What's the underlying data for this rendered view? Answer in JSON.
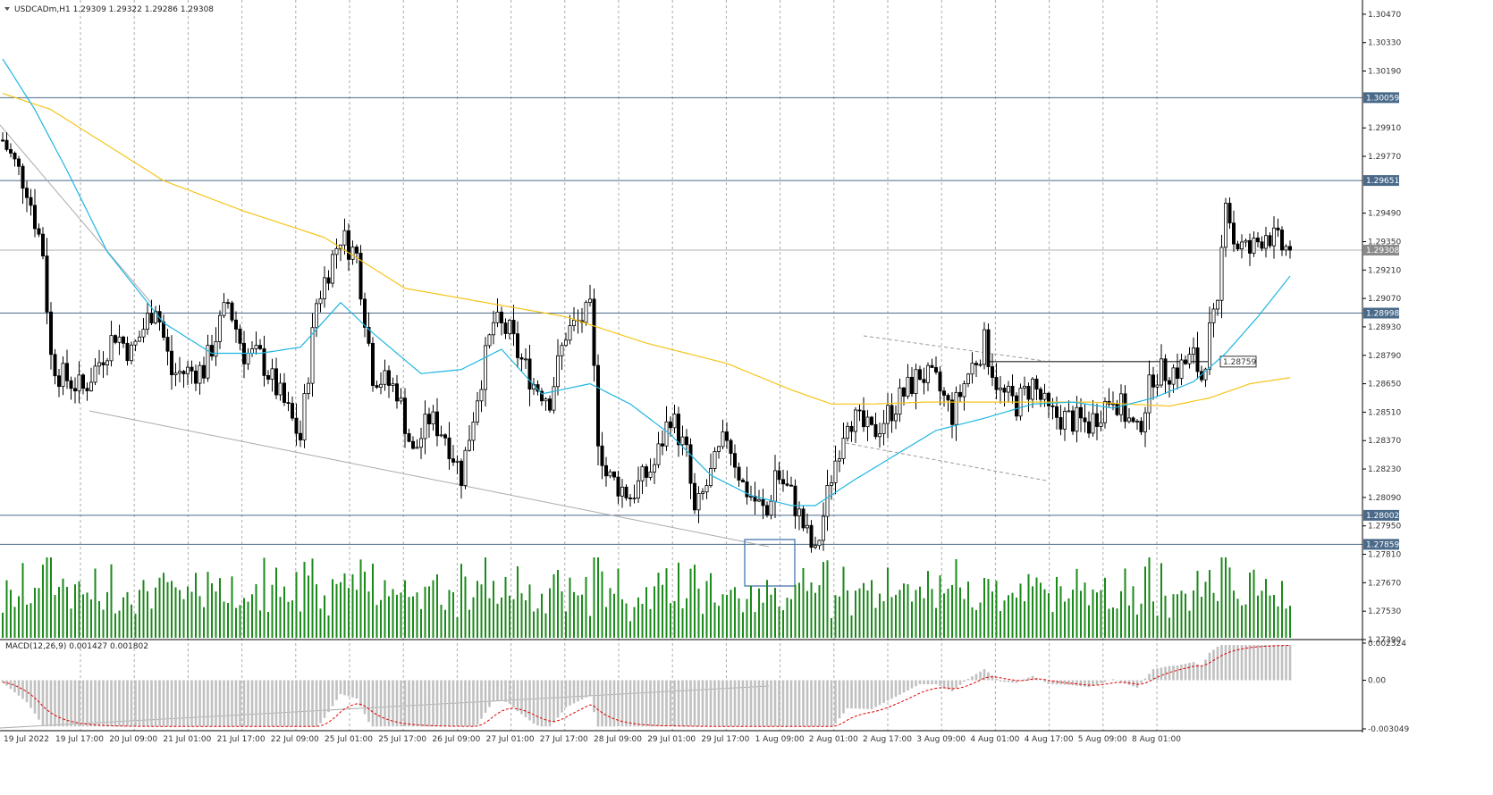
{
  "header": {
    "symbol_text": "USDCADm,H1  1.29309 1.29322 1.29286 1.29308",
    "macd_text": "MACD(12,26,9) 0.001427 0.001802"
  },
  "colors": {
    "candle": "#000000",
    "ma_fast": "#1fb6e0",
    "ma_slow": "#f5c518",
    "volume": "#1a8a1a",
    "macd_hist": "#c0c0c0",
    "macd_signal": "#e00000",
    "hline": "#4a6a8a",
    "hline_label_bg": "#4a6a8a",
    "current_label_bg": "#8a8a8a",
    "grid": "#888888",
    "trendline": "#aaaaaa",
    "box": "#3a6aa8"
  },
  "price_axis": {
    "ticks": [
      "1.30470",
      "1.30330",
      "1.30190",
      "1.29910",
      "1.29770",
      "1.29490",
      "1.29350",
      "1.29210",
      "1.29070",
      "1.28930",
      "1.28790",
      "1.28650",
      "1.28510",
      "1.28370",
      "1.28230",
      "1.28090",
      "1.27950",
      "1.27810",
      "1.27670",
      "1.27530",
      "1.27390"
    ]
  },
  "macd_axis": {
    "ticks": [
      "0.002324",
      "0.00",
      "-0.003049"
    ]
  },
  "time_axis": {
    "labels": [
      "19 Jul 2022",
      "19 Jul 17:00",
      "20 Jul 09:00",
      "21 Jul 01:00",
      "21 Jul 17:00",
      "22 Jul 09:00",
      "25 Jul 01:00",
      "25 Jul 17:00",
      "26 Jul 09:00",
      "27 Jul 01:00",
      "27 Jul 17:00",
      "28 Jul 09:00",
      "29 Jul 01:00",
      "29 Jul 17:00",
      "1 Aug 09:00",
      "2 Aug 01:00",
      "2 Aug 17:00",
      "3 Aug 09:00",
      "4 Aug 01:00",
      "4 Aug 17:00",
      "5 Aug 09:00",
      "8 Aug 01:00"
    ]
  },
  "price_lines": [
    {
      "label": "1.30059",
      "value": 1.30059
    },
    {
      "label": "1.29651",
      "value": 1.29651
    },
    {
      "label": "1.28998",
      "value": 1.28998
    },
    {
      "label": "1.28002",
      "value": 1.28002
    },
    {
      "label": "1.27859",
      "value": 1.27859
    }
  ],
  "current_price": {
    "label": "1.29308",
    "value": 1.29308
  },
  "breakout_line": {
    "label": "1.28759",
    "value": 1.28759
  },
  "chart_data": {
    "type": "candlestick",
    "symbol": "USDCADm",
    "timeframe": "H1",
    "ohlc_last": {
      "open": 1.29309,
      "high": 1.29322,
      "low": 1.29286,
      "close": 1.29308
    },
    "y_range": [
      1.2739,
      1.3054
    ],
    "close_path": [
      [
        0,
        1.2985
      ],
      [
        6,
        1.2962
      ],
      [
        10,
        1.293
      ],
      [
        12,
        1.2878
      ],
      [
        14,
        1.287
      ],
      [
        20,
        1.2862
      ],
      [
        28,
        1.289
      ],
      [
        32,
        1.288
      ],
      [
        38,
        1.2905
      ],
      [
        42,
        1.287
      ],
      [
        50,
        1.2872
      ],
      [
        56,
        1.2905
      ],
      [
        60,
        1.288
      ],
      [
        64,
        1.2878
      ],
      [
        70,
        1.2855
      ],
      [
        74,
        1.2838
      ],
      [
        78,
        1.2905
      ],
      [
        84,
        1.2938
      ],
      [
        88,
        1.2928
      ],
      [
        92,
        1.287
      ],
      [
        98,
        1.2862
      ],
      [
        102,
        1.283
      ],
      [
        106,
        1.2848
      ],
      [
        110,
        1.284
      ],
      [
        114,
        1.282
      ],
      [
        118,
        1.286
      ],
      [
        122,
        1.2895
      ],
      [
        126,
        1.289
      ],
      [
        128,
        1.288
      ],
      [
        132,
        1.2865
      ],
      [
        136,
        1.2858
      ],
      [
        140,
        1.289
      ],
      [
        146,
        1.29
      ],
      [
        148,
        1.284
      ],
      [
        150,
        1.282
      ],
      [
        156,
        1.281
      ],
      [
        162,
        1.2825
      ],
      [
        166,
        1.285
      ],
      [
        170,
        1.283
      ],
      [
        172,
        1.28
      ],
      [
        176,
        1.282
      ],
      [
        180,
        1.284
      ],
      [
        184,
        1.2815
      ],
      [
        190,
        1.28
      ],
      [
        192,
        1.2822
      ],
      [
        196,
        1.281
      ],
      [
        200,
        1.279
      ],
      [
        202,
        1.278
      ],
      [
        206,
        1.282
      ],
      [
        210,
        1.285
      ],
      [
        216,
        1.284
      ],
      [
        222,
        1.2855
      ],
      [
        228,
        1.287
      ],
      [
        232,
        1.2865
      ],
      [
        236,
        1.285
      ],
      [
        240,
        1.287
      ],
      [
        244,
        1.2885
      ],
      [
        248,
        1.286
      ],
      [
        252,
        1.2855
      ],
      [
        256,
        1.2865
      ],
      [
        260,
        1.285
      ],
      [
        264,
        1.2848
      ],
      [
        270,
        1.2845
      ],
      [
        276,
        1.286
      ],
      [
        282,
        1.284
      ],
      [
        286,
        1.287
      ],
      [
        292,
        1.2872
      ],
      [
        296,
        1.2878
      ],
      [
        298,
        1.2868
      ],
      [
        300,
        1.289
      ],
      [
        302,
        1.29
      ],
      [
        304,
        1.296
      ],
      [
        306,
        1.2935
      ],
      [
        310,
        1.293
      ],
      [
        314,
        1.294
      ],
      [
        318,
        1.2932
      ],
      [
        320,
        1.2931
      ]
    ],
    "ma_fast_path": [
      [
        0,
        1.3025
      ],
      [
        8,
        1.3
      ],
      [
        16,
        1.297
      ],
      [
        26,
        1.293
      ],
      [
        40,
        1.2895
      ],
      [
        52,
        1.288
      ],
      [
        64,
        1.288
      ],
      [
        74,
        1.2883
      ],
      [
        84,
        1.2905
      ],
      [
        92,
        1.289
      ],
      [
        104,
        1.287
      ],
      [
        114,
        1.2872
      ],
      [
        124,
        1.2882
      ],
      [
        134,
        1.286
      ],
      [
        146,
        1.2865
      ],
      [
        156,
        1.2855
      ],
      [
        166,
        1.284
      ],
      [
        176,
        1.282
      ],
      [
        186,
        1.281
      ],
      [
        196,
        1.2805
      ],
      [
        202,
        1.2805
      ],
      [
        212,
        1.2818
      ],
      [
        222,
        1.283
      ],
      [
        232,
        1.2842
      ],
      [
        244,
        1.2848
      ],
      [
        256,
        1.2855
      ],
      [
        266,
        1.2856
      ],
      [
        276,
        1.2853
      ],
      [
        286,
        1.2858
      ],
      [
        296,
        1.2866
      ],
      [
        304,
        1.288
      ],
      [
        312,
        1.2898
      ],
      [
        320,
        1.2918
      ]
    ],
    "ma_slow_path": [
      [
        0,
        1.3008
      ],
      [
        12,
        1.3
      ],
      [
        24,
        1.2985
      ],
      [
        40,
        1.2965
      ],
      [
        60,
        1.295
      ],
      [
        80,
        1.2937
      ],
      [
        100,
        1.2912
      ],
      [
        120,
        1.2905
      ],
      [
        140,
        1.2898
      ],
      [
        160,
        1.2885
      ],
      [
        180,
        1.2875
      ],
      [
        196,
        1.2862
      ],
      [
        206,
        1.2855
      ],
      [
        216,
        1.2855
      ],
      [
        230,
        1.2856
      ],
      [
        250,
        1.2856
      ],
      [
        270,
        1.2856
      ],
      [
        290,
        1.2854
      ],
      [
        300,
        1.2858
      ],
      [
        310,
        1.2865
      ],
      [
        320,
        1.2868
      ]
    ]
  }
}
